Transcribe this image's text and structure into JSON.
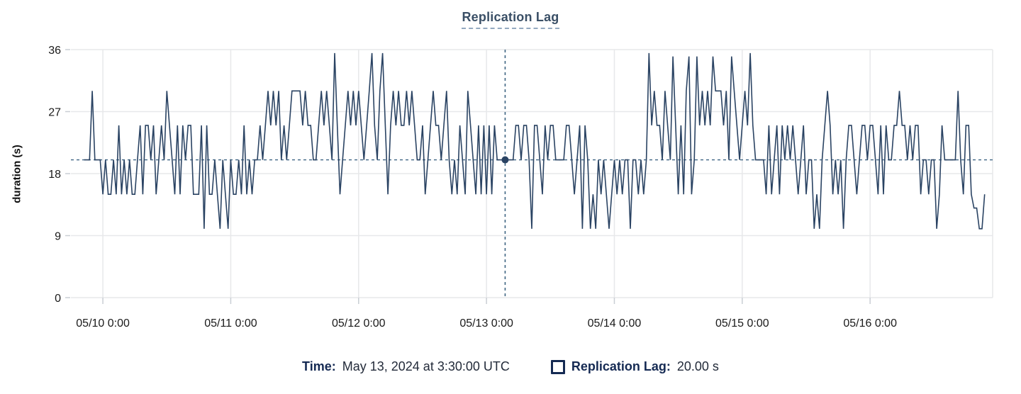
{
  "title": {
    "text": "Replication Lag"
  },
  "axes": {
    "ylabel": "duration (s)",
    "y_ticks": [
      0,
      9,
      18,
      27,
      36
    ],
    "x_ticks": [
      {
        "hour": 6,
        "label": "05/10 0:00"
      },
      {
        "hour": 30,
        "label": "05/11 0:00"
      },
      {
        "hour": 54,
        "label": "05/12 0:00"
      },
      {
        "hour": 78,
        "label": "05/13 0:00"
      },
      {
        "hour": 102,
        "label": "05/14 0:00"
      },
      {
        "hour": 126,
        "label": "05/15 0:00"
      },
      {
        "hour": 150,
        "label": "05/16 0:00"
      }
    ]
  },
  "legend": {
    "time_label": "Time:",
    "time_value": "May 13, 2024 at 3:30:00 UTC",
    "series_label": "Replication Lag:",
    "series_value": "20.00 s"
  },
  "colors": {
    "line": "#2a4363",
    "crosshair": "#3f6583",
    "grid": "#e7e8ea",
    "tick": "#c9ced4",
    "axis_text": "#1a1a1a",
    "title_text": "#3a4f66",
    "legend_text": "#152a53"
  },
  "chart_data": {
    "type": "line",
    "title": "Replication Lag",
    "xlabel": "",
    "ylabel": "duration (s)",
    "ylim": [
      0,
      36
    ],
    "y_ticks": [
      0,
      9,
      18,
      27,
      36
    ],
    "grid": true,
    "legend_position": "bottom",
    "axis_start_label": "05/09 18:00",
    "axis_hours_total": 173,
    "x_tick_labels": [
      "05/10 0:00",
      "05/11 0:00",
      "05/12 0:00",
      "05/13 0:00",
      "05/14 0:00",
      "05/15 0:00",
      "05/16 0:00"
    ],
    "crosshair": {
      "hour_offset": 81.5,
      "value": 20.0,
      "time": "May 13, 2024 at 3:30:00 UTC",
      "readout": "20.00 s"
    },
    "series": [
      {
        "name": "Replication Lag",
        "unit": "s",
        "start_hour_offset": 2.5,
        "interval_hours": 0.5,
        "values": [
          20,
          20,
          20,
          30,
          20,
          20,
          20,
          15,
          20,
          15,
          15,
          20,
          15,
          25,
          15,
          20,
          15,
          20,
          15,
          15,
          20,
          25,
          15,
          25,
          25,
          20,
          25,
          15,
          20,
          25,
          20,
          30,
          25,
          20,
          15,
          25,
          15,
          25,
          20,
          25,
          25,
          15,
          15,
          15,
          25,
          10,
          25,
          15,
          15,
          20,
          15,
          10,
          20,
          15,
          10,
          20,
          15,
          15,
          20,
          15,
          25,
          15,
          20,
          15,
          20,
          20,
          25,
          20,
          25,
          30,
          25,
          30,
          25,
          30,
          20,
          25,
          20,
          25,
          30,
          30,
          30,
          30,
          25,
          30,
          25,
          25,
          20,
          20,
          25,
          30,
          25,
          30,
          25,
          20,
          35.5,
          25,
          15,
          20,
          25,
          30,
          25,
          30,
          25,
          30,
          25,
          20,
          25,
          30,
          35.5,
          25,
          20,
          30,
          35.5,
          25,
          15,
          25,
          30,
          25,
          30,
          25,
          25,
          30,
          25,
          30,
          25,
          20,
          20,
          25,
          15,
          20,
          25,
          30,
          25,
          25,
          20,
          25,
          30,
          20,
          15,
          20,
          15,
          25,
          20,
          15,
          30,
          25,
          20,
          15,
          25,
          15,
          25,
          15,
          25,
          15,
          25,
          20,
          20,
          20,
          20,
          20,
          20,
          20,
          25,
          25,
          20,
          25,
          25,
          20,
          10,
          25,
          25,
          20,
          15,
          25,
          20,
          25,
          25,
          20,
          20,
          20,
          20,
          25,
          25,
          20,
          15,
          20,
          25,
          10,
          25,
          20,
          10,
          15,
          10,
          20,
          15,
          20,
          15,
          10,
          15,
          20,
          15,
          20,
          15,
          20,
          20,
          10,
          20,
          20,
          15,
          20,
          15,
          20,
          35.5,
          25,
          30,
          25,
          25,
          20,
          30,
          25,
          20,
          35,
          25,
          15,
          25,
          15,
          30,
          35,
          15,
          20,
          35,
          25,
          30,
          25,
          30,
          25,
          35,
          30,
          30,
          30,
          25,
          30,
          20,
          35,
          30,
          25,
          20,
          25,
          30,
          25,
          35.5,
          25,
          20,
          20,
          20,
          20,
          15,
          25,
          15,
          20,
          25,
          15,
          25,
          20,
          25,
          20,
          25,
          20,
          15,
          20,
          25,
          15,
          20,
          20,
          10,
          15,
          10,
          20,
          25,
          30,
          25,
          15,
          20,
          15,
          20,
          10,
          20,
          25,
          25,
          20,
          15,
          20,
          25,
          25,
          20,
          25,
          25,
          20,
          15,
          25,
          15,
          25,
          20,
          20,
          25,
          25,
          30,
          25,
          25,
          20,
          25,
          20,
          25,
          25,
          15,
          20,
          20,
          15,
          20,
          20,
          10,
          15,
          25,
          20,
          20,
          20,
          20,
          20,
          30,
          20,
          15,
          25,
          25,
          15,
          13,
          13,
          10,
          10,
          15
        ]
      }
    ]
  }
}
